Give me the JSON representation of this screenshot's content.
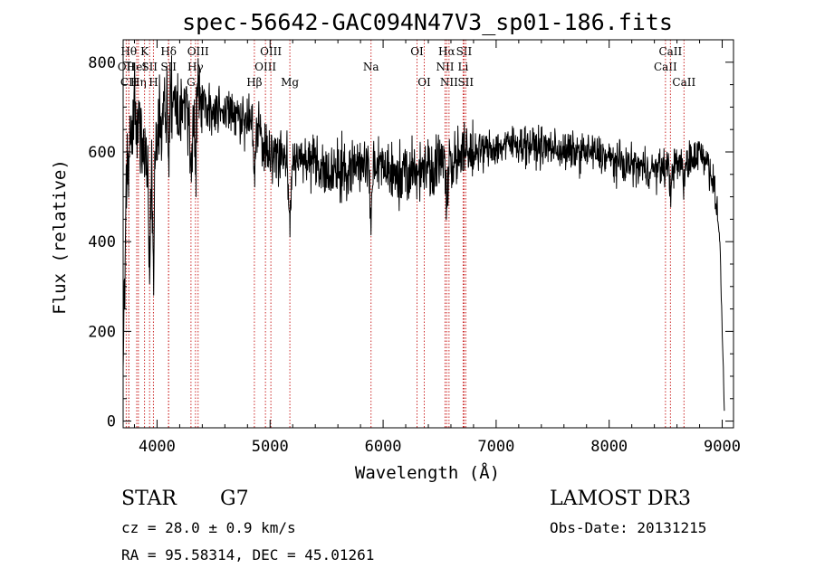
{
  "chart_data": {
    "type": "line",
    "title": "spec-56642-GAC094N47V3_sp01-186.fits",
    "xlabel": "Wavelength (Å)",
    "ylabel": "Flux (relative)",
    "xlim": [
      3700,
      9100
    ],
    "ylim": [
      -15,
      850
    ],
    "xticks": [
      4000,
      5000,
      6000,
      7000,
      8000,
      9000
    ],
    "xtick_labels": [
      "4000",
      "5000",
      "6000",
      "7000",
      "8000",
      "9000"
    ],
    "yticks": [
      0,
      200,
      400,
      600,
      800
    ],
    "ytick_labels": [
      "0",
      "200",
      "400",
      "600",
      "800"
    ],
    "continuum": {
      "x": [
        3700,
        3710,
        3730,
        3760,
        3800,
        3850,
        3900,
        3950,
        4000,
        4100,
        4200,
        4300,
        4400,
        4500,
        4600,
        4700,
        4800,
        4900,
        5000,
        5100,
        5200,
        5300,
        5400,
        5500,
        5600,
        5700,
        5800,
        5900,
        6000,
        6100,
        6200,
        6300,
        6400,
        6500,
        6600,
        6700,
        6800,
        6900,
        7000,
        7100,
        7200,
        7300,
        7400,
        7500,
        7600,
        7700,
        7800,
        7900,
        8000,
        8100,
        8200,
        8300,
        8400,
        8500,
        8600,
        8700,
        8800,
        8850,
        8900,
        8950,
        8980,
        9000,
        9020
      ],
      "y": [
        120,
        300,
        520,
        620,
        680,
        650,
        600,
        580,
        640,
        720,
        700,
        690,
        710,
        700,
        690,
        680,
        670,
        640,
        600,
        590,
        590,
        580,
        570,
        560,
        550,
        560,
        570,
        575,
        560,
        555,
        545,
        560,
        570,
        575,
        580,
        590,
        600,
        605,
        610,
        615,
        620,
        615,
        610,
        610,
        600,
        600,
        600,
        595,
        585,
        575,
        570,
        565,
        560,
        565,
        570,
        580,
        600,
        590,
        560,
        480,
        400,
        200,
        20
      ]
    },
    "absorption_features": [
      {
        "x": 3934,
        "depth": 260,
        "width": 12
      },
      {
        "x": 3968,
        "depth": 300,
        "width": 10
      },
      {
        "x": 4101,
        "depth": 120,
        "width": 10
      },
      {
        "x": 4300,
        "depth": 140,
        "width": 12
      },
      {
        "x": 4340,
        "depth": 130,
        "width": 10
      },
      {
        "x": 4861,
        "depth": 120,
        "width": 10
      },
      {
        "x": 5175,
        "depth": 140,
        "width": 14
      },
      {
        "x": 5893,
        "depth": 120,
        "width": 12
      },
      {
        "x": 6563,
        "depth": 80,
        "width": 10
      },
      {
        "x": 8542,
        "depth": 60,
        "width": 10
      },
      {
        "x": 8662,
        "depth": 60,
        "width": 10
      }
    ],
    "annotation_lines": [
      {
        "x": 3727,
        "row": 1,
        "label": "OII"
      },
      {
        "x": 3750,
        "row": 0,
        "label": "Hθ"
      },
      {
        "x": 3750,
        "row": 2,
        "label": "CII"
      },
      {
        "x": 3820,
        "row": 1,
        "label": "HeI"
      },
      {
        "x": 3835,
        "row": 2,
        "label": "Hη"
      },
      {
        "x": 3889,
        "row": 0,
        "label": "K"
      },
      {
        "x": 3934,
        "row": 1,
        "label": "SII"
      },
      {
        "x": 3968,
        "row": 2,
        "label": "H"
      },
      {
        "x": 4102,
        "row": 0,
        "label": "Hδ"
      },
      {
        "x": 4102,
        "row": 1,
        "label": "SII"
      },
      {
        "x": 4300,
        "row": 2,
        "label": "G"
      },
      {
        "x": 4340,
        "row": 1,
        "label": "Hγ"
      },
      {
        "x": 4363,
        "row": 0,
        "label": "OIII"
      },
      {
        "x": 4861,
        "row": 2,
        "label": "Hβ"
      },
      {
        "x": 4959,
        "row": 1,
        "label": "OIII"
      },
      {
        "x": 5007,
        "row": 0,
        "label": "OIII"
      },
      {
        "x": 5175,
        "row": 2,
        "label": "Mg"
      },
      {
        "x": 5893,
        "row": 1,
        "label": "Na"
      },
      {
        "x": 6300,
        "row": 0,
        "label": "OI"
      },
      {
        "x": 6364,
        "row": 2,
        "label": "OI"
      },
      {
        "x": 6548,
        "row": 1,
        "label": "NII"
      },
      {
        "x": 6563,
        "row": 0,
        "label": "Hα"
      },
      {
        "x": 6583,
        "row": 2,
        "label": "NII"
      },
      {
        "x": 6708,
        "row": 1,
        "label": "Li"
      },
      {
        "x": 6716,
        "row": 0,
        "label": "SII"
      },
      {
        "x": 6731,
        "row": 2,
        "label": "SII"
      },
      {
        "x": 8498,
        "row": 1,
        "label": "CaII"
      },
      {
        "x": 8542,
        "row": 0,
        "label": "CaII"
      },
      {
        "x": 8662,
        "row": 2,
        "label": "CaII"
      }
    ]
  },
  "info": {
    "object_class": "STAR",
    "subclass": "G7",
    "survey": "LAMOST DR3",
    "redshift": "cz = 28.0 ± 0.9 km/s",
    "obs_date": "Obs-Date: 20131215",
    "coords": "RA =  95.58314, DEC =  45.01261"
  }
}
